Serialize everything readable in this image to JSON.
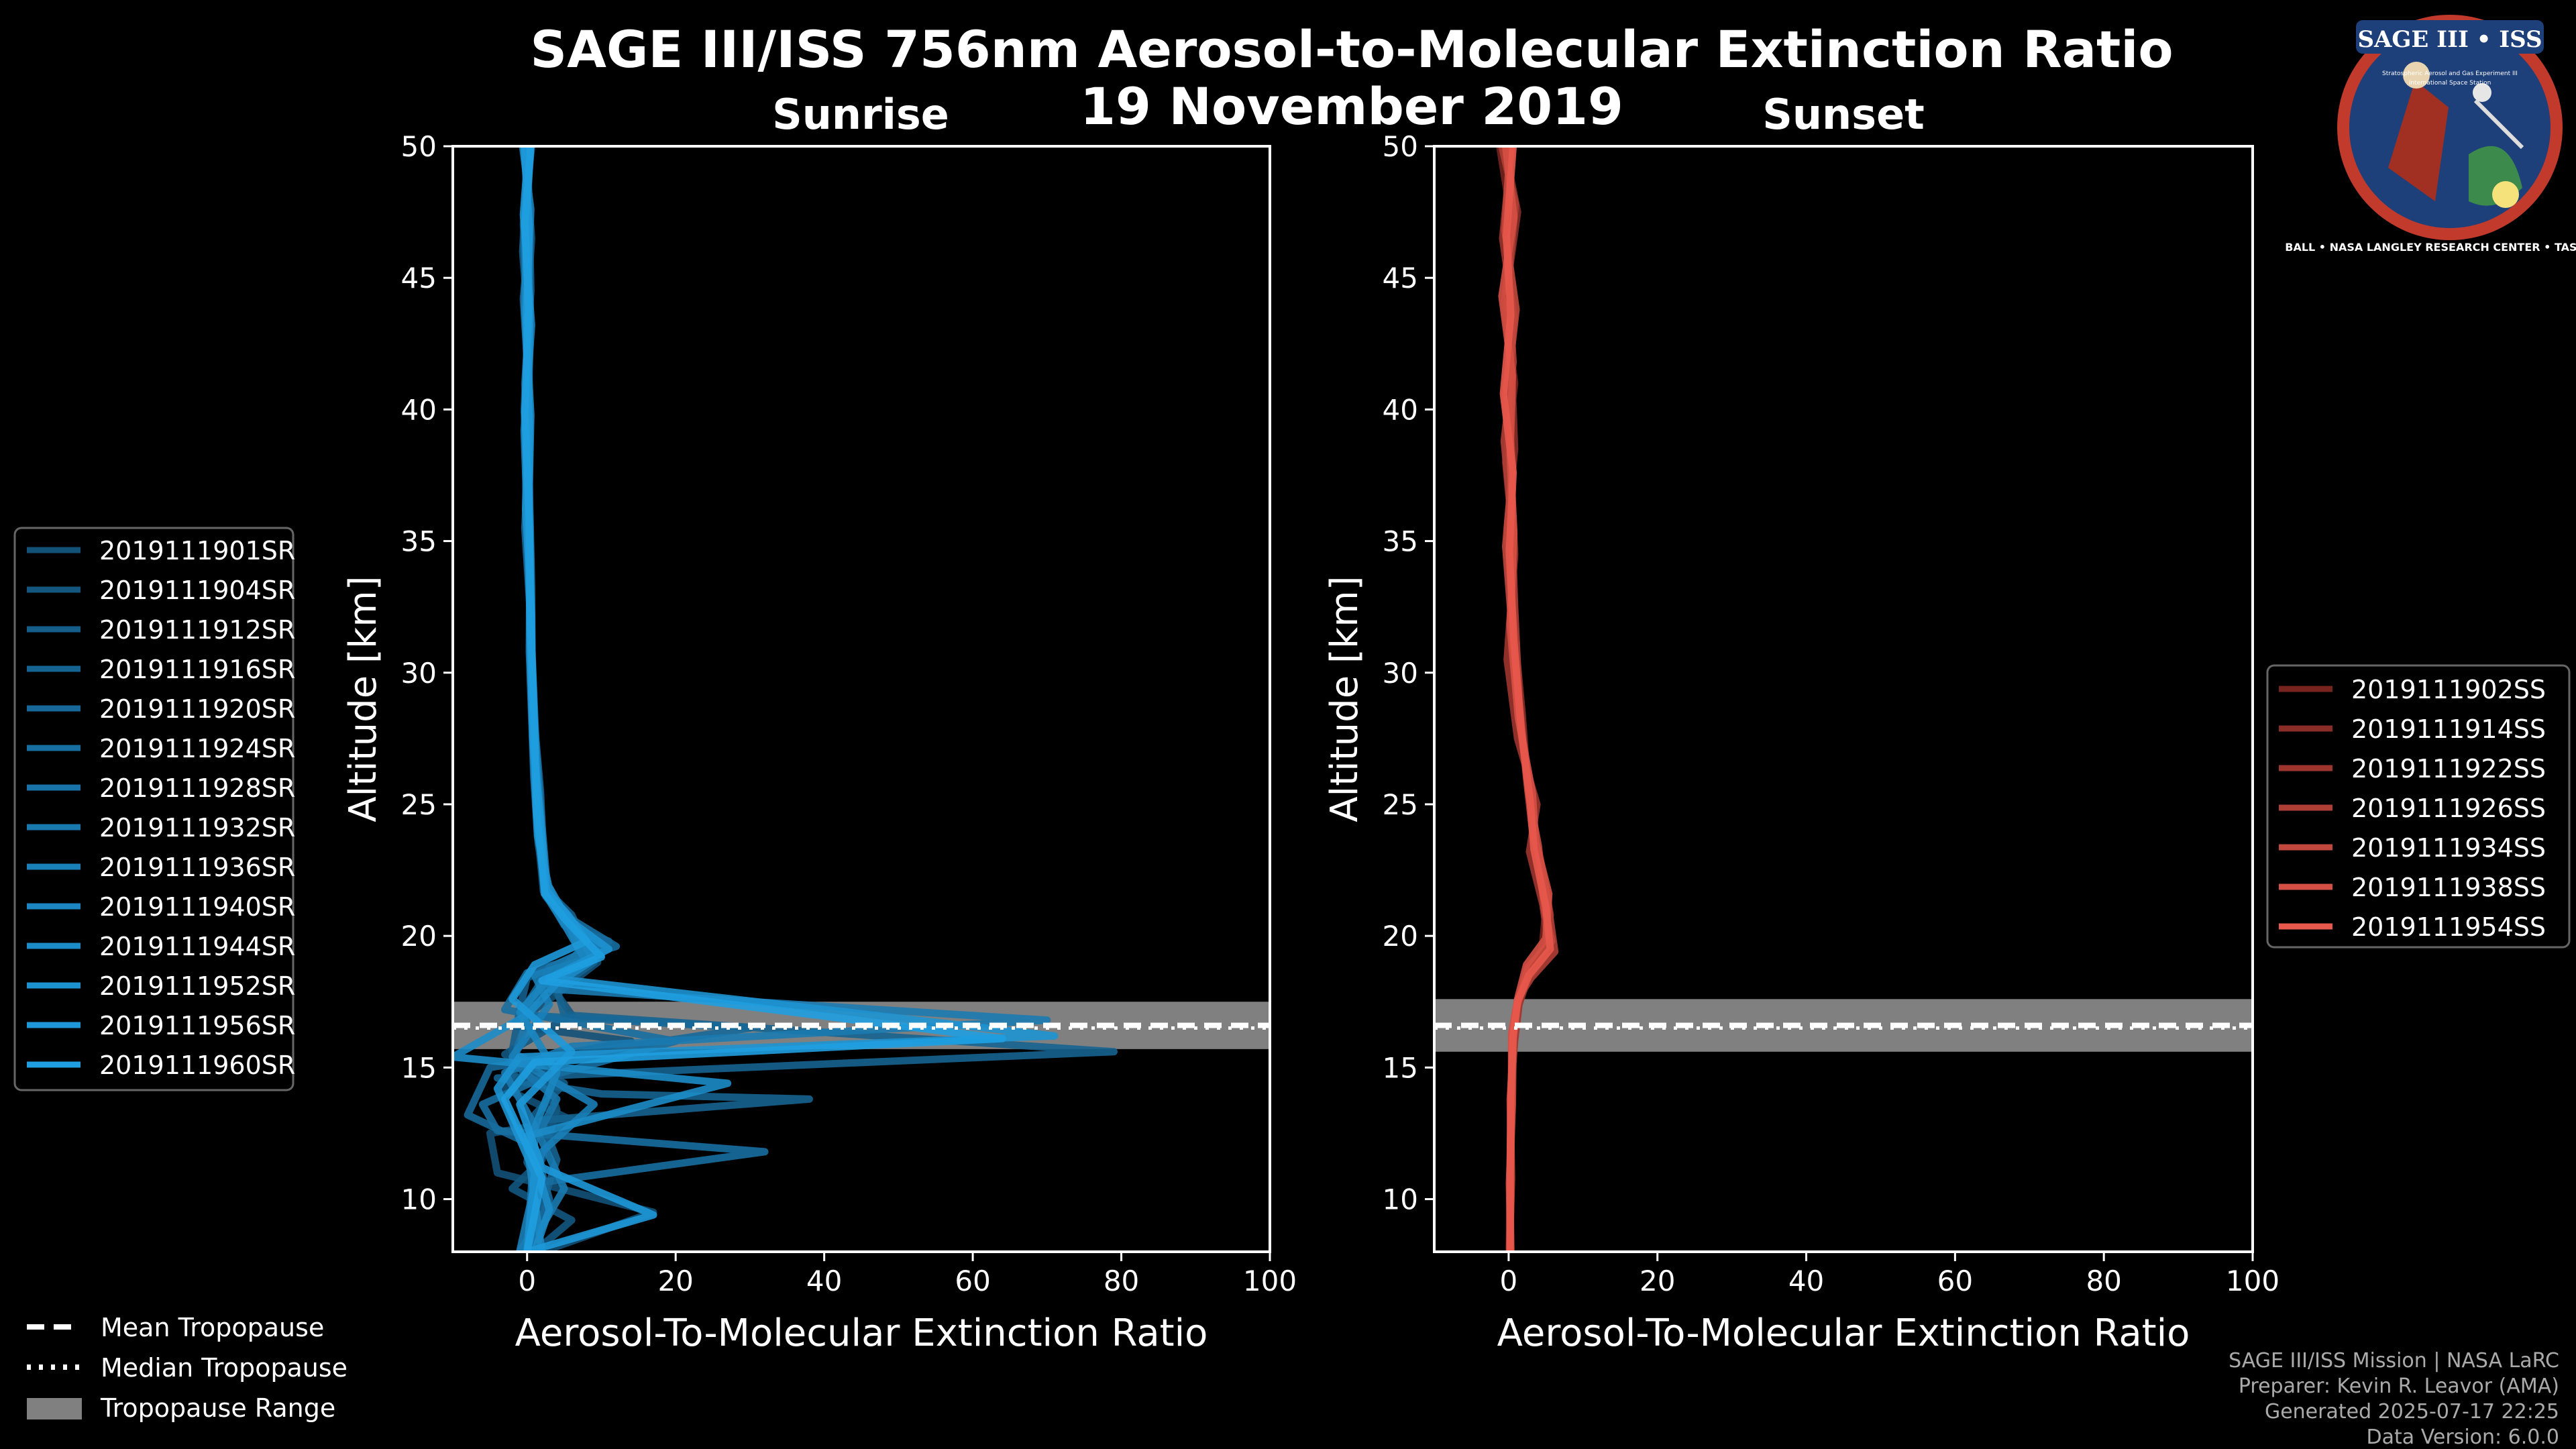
{
  "title_line1": "SAGE III/ISS 756nm Aerosol-to-Molecular Extinction Ratio",
  "title_line2": "19 November 2019",
  "logo": {
    "text_top": "SAGE III • ISS",
    "text_ring": "BALL • NASA LANGLEY RESEARCH CENTER • TAS • ESA",
    "text_small_left": "Stratospheric Aerosol and Gas Experiment III",
    "text_small_right": "International Space Station"
  },
  "colors": {
    "sunrise": "#1f9ee0",
    "sunset": "#e8584b",
    "trop_band": "#808080",
    "axes": "#ffffff",
    "background": "#000000"
  },
  "chart_data": [
    {
      "type": "line",
      "panel": "sunrise",
      "title": "Sunrise",
      "xlabel": "Aerosol-To-Molecular Extinction Ratio",
      "ylabel": "Altitude [km]",
      "xlim": [
        -10,
        100
      ],
      "ylim": [
        8,
        50
      ],
      "xticks": [
        0,
        20,
        40,
        60,
        80,
        100
      ],
      "yticks": [
        10,
        15,
        20,
        25,
        30,
        35,
        40,
        45,
        50
      ],
      "tropopause": {
        "mean": 16.6,
        "median": 16.6,
        "range": [
          15.7,
          17.5
        ]
      },
      "series": [
        {
          "name": "2019111901SR",
          "x": [
            0.6,
            -0.5,
            0.3,
            -0.4,
            0.2,
            0.5,
            0.8,
            1.6,
            2.5,
            5.5,
            9.5,
            4,
            -2,
            14,
            -1,
            -3,
            6,
            -5,
            -4,
            10,
            17,
            2
          ],
          "y": [
            50,
            47,
            44,
            40,
            36,
            32,
            28,
            25,
            21.5,
            20.5,
            19,
            17.8,
            16.6,
            16,
            15.2,
            14.2,
            13,
            12.5,
            11,
            10,
            9.5,
            8
          ]
        },
        {
          "name": "2019111904SR",
          "x": [
            -0.3,
            0.6,
            -0.2,
            0.4,
            0.1,
            0.6,
            1,
            1.4,
            2.2,
            4,
            8,
            3,
            6,
            -3,
            3,
            4,
            2,
            -2,
            6,
            1
          ],
          "y": [
            50,
            46.5,
            43,
            39,
            35,
            31,
            27,
            24,
            21.7,
            21,
            19.5,
            18.2,
            17,
            15.5,
            14.2,
            13.4,
            11.5,
            10.4,
            9.2,
            8
          ]
        },
        {
          "name": "2019111912SR",
          "x": [
            0.2,
            -0.6,
            0.4,
            -0.1,
            0.3,
            0.4,
            0.9,
            1.5,
            2.6,
            5,
            11,
            0,
            -1,
            -2,
            5,
            1,
            0,
            3,
            -1
          ],
          "y": [
            50,
            46,
            42.5,
            38,
            34,
            30,
            26,
            23.5,
            21.6,
            20.4,
            19.8,
            18.4,
            17.2,
            15.6,
            14.4,
            13.2,
            11.4,
            9.8,
            8
          ]
        },
        {
          "name": "2019111916SR",
          "x": [
            -0.4,
            0.3,
            0.5,
            -0.3,
            0.2,
            0.5,
            0.7,
            1.8,
            2.4,
            6,
            9,
            4,
            5,
            79,
            -4,
            10,
            38,
            2,
            4,
            0
          ],
          "y": [
            50,
            47.5,
            44.5,
            41,
            37,
            33,
            29,
            25.5,
            21.8,
            20.8,
            19,
            18,
            17,
            15.6,
            14.6,
            14,
            13.8,
            13,
            11.5,
            8
          ]
        },
        {
          "name": "2019111920SR",
          "x": [
            0.5,
            -0.2,
            0.1,
            0.4,
            -0.3,
            0.6,
            0.8,
            1.3,
            2.8,
            5.2,
            8,
            2,
            -1,
            30,
            -5,
            -8,
            1,
            3,
            0
          ],
          "y": [
            50,
            46.8,
            43.5,
            39.5,
            35.5,
            31.5,
            27.5,
            24.5,
            21.9,
            20.6,
            19.2,
            18.3,
            17,
            16.5,
            15,
            13.2,
            12,
            10,
            8
          ]
        },
        {
          "name": "2019111924SR",
          "x": [
            -0.1,
            0.4,
            -0.5,
            0.3,
            0.2,
            0.4,
            1,
            1.6,
            2.3,
            5.6,
            12,
            0,
            -3,
            20,
            2,
            -6,
            -4,
            32,
            1,
            0
          ],
          "y": [
            50,
            47.2,
            44.2,
            40.5,
            36.5,
            32.5,
            28.5,
            24.8,
            21.6,
            20.7,
            19.6,
            18.6,
            17.2,
            16,
            14.6,
            13.6,
            12.6,
            11.8,
            10.6,
            8
          ]
        },
        {
          "name": "2019111928SR",
          "x": [
            0.3,
            -0.4,
            0.2,
            -0.2,
            0.4,
            0.3,
            0.9,
            1.4,
            2.6,
            5,
            10,
            3,
            0,
            -2,
            4,
            1,
            0
          ],
          "y": [
            50,
            46.2,
            42.8,
            38.8,
            34.8,
            30.8,
            26.8,
            24,
            21.8,
            20.5,
            19.7,
            18.8,
            16.8,
            15.2,
            13.8,
            12.2,
            8
          ]
        },
        {
          "name": "2019111932SR",
          "x": [
            -0.6,
            0.5,
            0.1,
            -0.1,
            0.3,
            0.6,
            0.7,
            1.7,
            2.7,
            5.4,
            7,
            2,
            70,
            6,
            -3,
            1,
            5,
            0
          ],
          "y": [
            50,
            47.6,
            44.6,
            41.2,
            37.2,
            33.2,
            29.2,
            25.2,
            21.9,
            20.6,
            19.4,
            18,
            16.8,
            15.8,
            14.8,
            12.8,
            10.4,
            8
          ]
        },
        {
          "name": "2019111936SR",
          "x": [
            0.1,
            -0.3,
            0.6,
            -0.4,
            0.1,
            0.5,
            0.8,
            1.5,
            2.5,
            5.8,
            10,
            1,
            3,
            -2,
            9,
            2,
            -1
          ],
          "y": [
            50,
            46.6,
            43.2,
            39.2,
            35.2,
            31.2,
            27.2,
            24.2,
            21.7,
            20.5,
            19.3,
            18.5,
            17.4,
            15.4,
            13.6,
            11.8,
            8
          ]
        },
        {
          "name": "2019111940SR",
          "x": [
            0.4,
            -0.1,
            -0.3,
            0.5,
            0.2,
            0.4,
            1,
            1.6,
            2.4,
            5.1,
            8,
            2,
            -1,
            4,
            0,
            2
          ],
          "y": [
            50,
            47,
            43.8,
            39.8,
            35.8,
            31.8,
            27.8,
            24.6,
            21.6,
            20.4,
            19,
            18.1,
            17.1,
            14.8,
            12,
            8
          ]
        },
        {
          "name": "2019111944SR",
          "x": [
            -0.2,
            0.2,
            0.3,
            -0.2,
            0.4,
            0.5,
            0.9,
            1.4,
            2.9,
            5.3,
            9,
            4,
            0,
            -10,
            27,
            0,
            3,
            1
          ],
          "y": [
            50,
            46.4,
            42.6,
            38.6,
            34.6,
            30.6,
            26.6,
            23.8,
            21.9,
            20.7,
            19.1,
            18.2,
            17,
            15.4,
            14.4,
            12.4,
            9.6,
            8
          ]
        },
        {
          "name": "2019111952SR",
          "x": [
            0.2,
            -0.5,
            0.4,
            0.1,
            -0.2,
            0.6,
            0.7,
            1.5,
            2.5,
            5.7,
            11,
            3,
            71,
            -1,
            -4,
            1,
            0
          ],
          "y": [
            50,
            47.4,
            44,
            40.2,
            36.2,
            32.2,
            28.2,
            25,
            21.8,
            20.6,
            19.5,
            18.4,
            16.2,
            15.4,
            14.2,
            11,
            8
          ]
        },
        {
          "name": "2019111956SR",
          "x": [
            -0.4,
            0.3,
            -0.1,
            0.3,
            0.2,
            0.4,
            0.8,
            1.8,
            2.6,
            5.5,
            8,
            1,
            -2,
            6,
            -1,
            2,
            17,
            0
          ],
          "y": [
            50,
            46.9,
            43.4,
            39.4,
            35.4,
            31.4,
            27.4,
            24.4,
            21.7,
            20.8,
            19.8,
            18.9,
            17.6,
            15.6,
            13.6,
            11.2,
            9.4,
            8
          ]
        },
        {
          "name": "2019111960SR",
          "x": [
            0.5,
            -0.3,
            0.2,
            -0.3,
            0.3,
            0.5,
            1,
            1.3,
            2.4,
            5.2,
            10,
            2,
            64,
            1,
            -3,
            2,
            0
          ],
          "y": [
            50,
            47.1,
            43.9,
            39.9,
            35.9,
            31.9,
            27.9,
            24.7,
            21.6,
            20.6,
            19.2,
            18.3,
            16.1,
            15.2,
            13.8,
            10.8,
            8
          ]
        }
      ]
    },
    {
      "type": "line",
      "panel": "sunset",
      "title": "Sunset",
      "xlabel": "Aerosol-To-Molecular Extinction Ratio",
      "ylabel": "Altitude [km]",
      "xlim": [
        -10,
        100
      ],
      "ylim": [
        8,
        50
      ],
      "xticks": [
        0,
        20,
        40,
        60,
        80,
        100
      ],
      "yticks": [
        10,
        15,
        20,
        25,
        30,
        35,
        40,
        45,
        50
      ],
      "tropopause": {
        "mean": 16.6,
        "median": 16.6,
        "range": [
          15.6,
          17.6
        ]
      },
      "series": [
        {
          "name": "2019111902SS",
          "x": [
            -1.2,
            0.5,
            -0.6,
            0.8,
            -0.4,
            0.6,
            0.4,
            1.5,
            3,
            3.5,
            5,
            4.5,
            2.5,
            1.2,
            0.6,
            0.3,
            0.2,
            0.1
          ],
          "y": [
            50,
            47,
            44,
            41,
            38,
            35,
            31,
            28,
            25,
            23.5,
            21,
            19.5,
            18.5,
            17.5,
            16.2,
            14,
            11,
            8
          ]
        },
        {
          "name": "2019111914SS",
          "x": [
            -0.6,
            1.2,
            -0.3,
            0.4,
            0.8,
            -0.2,
            0.6,
            1.8,
            2.6,
            4.2,
            5.6,
            4.8,
            2.2,
            1,
            0.5,
            0.4,
            0.2,
            0.3
          ],
          "y": [
            50,
            47.5,
            44.5,
            41.5,
            38.5,
            35.5,
            32,
            28.5,
            25.5,
            23,
            20.8,
            19.2,
            18.2,
            17.2,
            15.8,
            13.5,
            10.5,
            8
          ]
        },
        {
          "name": "2019111922SS",
          "x": [
            0.4,
            -0.8,
            0.7,
            -0.5,
            0.3,
            0.8,
            -0.2,
            1.2,
            3.8,
            2.8,
            4.6,
            5.4,
            2.8,
            1.4,
            0.8,
            0.2,
            0.4,
            0.1
          ],
          "y": [
            50,
            46.5,
            43.5,
            40.5,
            37.5,
            34.5,
            30.5,
            27.5,
            25,
            23.2,
            21.2,
            19.6,
            18.6,
            17.4,
            16,
            13.8,
            10.8,
            8
          ]
        },
        {
          "name": "2019111926SS",
          "x": [
            -0.9,
            0.9,
            -0.1,
            0.6,
            -0.6,
            0.4,
            0.8,
            1.4,
            2.4,
            3.2,
            5.2,
            6.2,
            3,
            1.2,
            0.7,
            0.3,
            0.3,
            0.2
          ],
          "y": [
            50,
            47.8,
            44.8,
            41.8,
            38.8,
            35.8,
            32.5,
            29,
            26,
            24,
            21.4,
            19.4,
            18.4,
            17.6,
            16.4,
            14.2,
            11.2,
            8
          ]
        },
        {
          "name": "2019111934SS",
          "x": [
            0.2,
            -0.5,
            1,
            -0.2,
            0.5,
            -0.4,
            0.5,
            1.6,
            2.8,
            4,
            4.8,
            5.8,
            2.6,
            1.1,
            0.6,
            0.5,
            0.1,
            0.3
          ],
          "y": [
            50,
            46.8,
            43.8,
            40.8,
            37.8,
            34.8,
            31.5,
            28,
            25.2,
            23.4,
            21,
            19.8,
            18.8,
            17.3,
            16.1,
            13.6,
            10.6,
            8
          ]
        },
        {
          "name": "2019111938SS",
          "x": [
            -0.4,
            0.7,
            -0.9,
            0.5,
            0.2,
            0.7,
            0.2,
            1.3,
            3.2,
            3.6,
            5.4,
            5,
            2.4,
            1.3,
            0.4,
            0.4,
            0.3,
            0.2
          ],
          "y": [
            50,
            47.3,
            44.3,
            41.3,
            38.3,
            35.3,
            31.8,
            28.3,
            25.4,
            23.6,
            21.6,
            19.9,
            18.9,
            17.7,
            16.3,
            14.1,
            11.4,
            8
          ]
        },
        {
          "name": "2019111954SS",
          "x": [
            0.6,
            -0.3,
            0.3,
            -0.7,
            0.6,
            0.1,
            0.7,
            1.7,
            2.9,
            3.4,
            5,
            5.6,
            2.7,
            1.2,
            0.6,
            0.3,
            0.2,
            0.2
          ],
          "y": [
            50,
            46.6,
            43.6,
            40.6,
            37.6,
            34.6,
            31.2,
            27.8,
            25.1,
            23.3,
            21.1,
            19.5,
            18.5,
            17.5,
            16.2,
            13.9,
            10.9,
            8
          ]
        }
      ]
    }
  ],
  "trop_legend": {
    "mean": "Mean Tropopause",
    "median": "Median Tropopause",
    "range": "Tropopause Range"
  },
  "footer": {
    "line1": "SAGE III/ISS Mission | NASA LaRC",
    "line2": "Preparer: Kevin R. Leavor (AMA)",
    "line3": "Generated 2025-07-17 22:25",
    "line4": "Data Version: 6.0.0"
  }
}
